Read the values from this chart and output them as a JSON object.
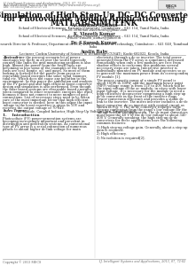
{
  "page_bg": "#ffffff",
  "header_journal": "I.J. Intelligent Systems and Applications, 2013, 07, 72-82",
  "header_pub": "Published Online June 2013 in MECS (http://www.mecs-press.org/)",
  "header_doi": "DOI: 10.5815/ijisa.2013.07.10",
  "title_line1": "Simulation of High Step-Up DC–DC Converter",
  "title_line2": "for Photovoltaic Module Application using",
  "title_line3": "MATLAB/SIMULINK",
  "author1_name": "A.Chinthan Sindhan",
  "author1_aff1": "School of Electrical Sciences, Karunya University, Coimbatore – 641 114, Tamil Nadu, India",
  "author1_email": "E-mail: chinthan.electronics@gmail.com",
  "author2_name": "K. Vineeth Kumar",
  "author2_aff1": "School of Electrical Sciences, Karunya University, Coimbatore – 641 114, Tamil Nadu, India",
  "author2_email": "E-mail: Vineeth_kumar@yahoo.in",
  "author3_name": "Dr. S.Suresh Kumar",
  "author3_aff1": "Research Director & Professor, Department of ECE, DrNGP Institute of Technology, Coimbatore – 641 048, Tamilnadu,",
  "author3_aff2": "India",
  "author4_name": "Austin Baby",
  "author4_aff1": "Lecturer, Cochin University of Science & Technology (CUSAT), Kochi-682022, Kerala, India",
  "footer_left": "Copyright © 2013 MECS",
  "footer_right": "I.J. Intelligent Systems and Applications, 2013, 07, 72-82",
  "title_color": "#111111",
  "text_color": "#222222",
  "header_color": "#666666",
  "abstract_left_lines": [
    "Abstract—As per the present scenario lot of power",
    "shortages are there in all over the world especially",
    "country like India the grid monitoring problem is also",
    "high. Almost the power from the fossil fuels are",
    "becoming so less some of the examples of the fossil",
    "fuels are coal, lignite, oil, and gases. So most of them",
    "looking is forward for the power from green or",
    "renewable based energies like solar, wind, biomass,",
    "tidal etc. Which does not cause any pollution to the",
    "environment. In this paper the simulation and analysis",
    "of the PV panel and also high efficient boost converter",
    "design and simulation is also performed. Even though",
    "the solar based systems are renewable based energies,",
    "when compared to other renewable energies like wind,",
    "biomass it does not connect to more number of grid",
    "connections. List of necessary steps need to be taken",
    "care of the most important factor that high efficient",
    "boost converter is needed, here in this paper the input",
    "voltage to the boost converter is given as 10V and",
    "receives the output voltage of 70-84V."
  ],
  "index_terms_line": "Index Terms—AC Module, Coupled Inductor, High Step-Up Voltage Gain, Single Switch.",
  "section1_title": "1.    Introduction",
  "section1_lines": [
    "Photovoltaic (PV) power-generation systems are",
    "becoming increasingly important and prevalent in",
    "distribution and generation systems. As conventional",
    "type of PV array is a serial connection of numerous",
    "panels to obtain higher dc-link voltage for main"
  ],
  "right_col_lines": [
    "electricity through a dc-ac inverter. The total power",
    "generated from the PV array is sometimes decreased",
    "remarkably when only a few modules are free from",
    "shadow effects to overcome this problems several",
    "necessary steps are taken. Interactive inverter is",
    "individually mounted on PV module and operates so as",
    "to generate the maximum power from its corresponding",
    "PV module [1].",
    "",
    "The power capacity range of a single PV panel is",
    "about 160W to 300W, and the maximum power point",
    "(MPP) voltage range is from 15V to 40V, which will be",
    "the input voltage of the ac module; in cases with lower",
    "input voltage, it is necessary for the module to need a",
    "high-efficiency dcconverter comprising a high step-up",
    "dc-dc converter in the front of the inverter stage.",
    "Power-conversion efficiency and provides a stable dc",
    "link to the inverter. The micro inverter includes a dc-dc",
    "boost converter, dc-ac inverter with control circuit as",
    "shown in Fig. 1. The dc-dc converter requires large",
    "step-up conversion from the panel’s low voltage for the",
    "voltage level of the application. The dc input converters",
    "must boost the 40 V of the dc low voltage to about 340-",
    "400 V. Generally speaking, the high step-up dc-dc",
    "converters for these applications have the following",
    "common features:",
    "",
    "1) High step-up voltage gain. Generally, about a step-up",
    "gain is required.",
    "",
    "2) High efficiency.",
    "",
    "3) No isolation is required[2]."
  ]
}
